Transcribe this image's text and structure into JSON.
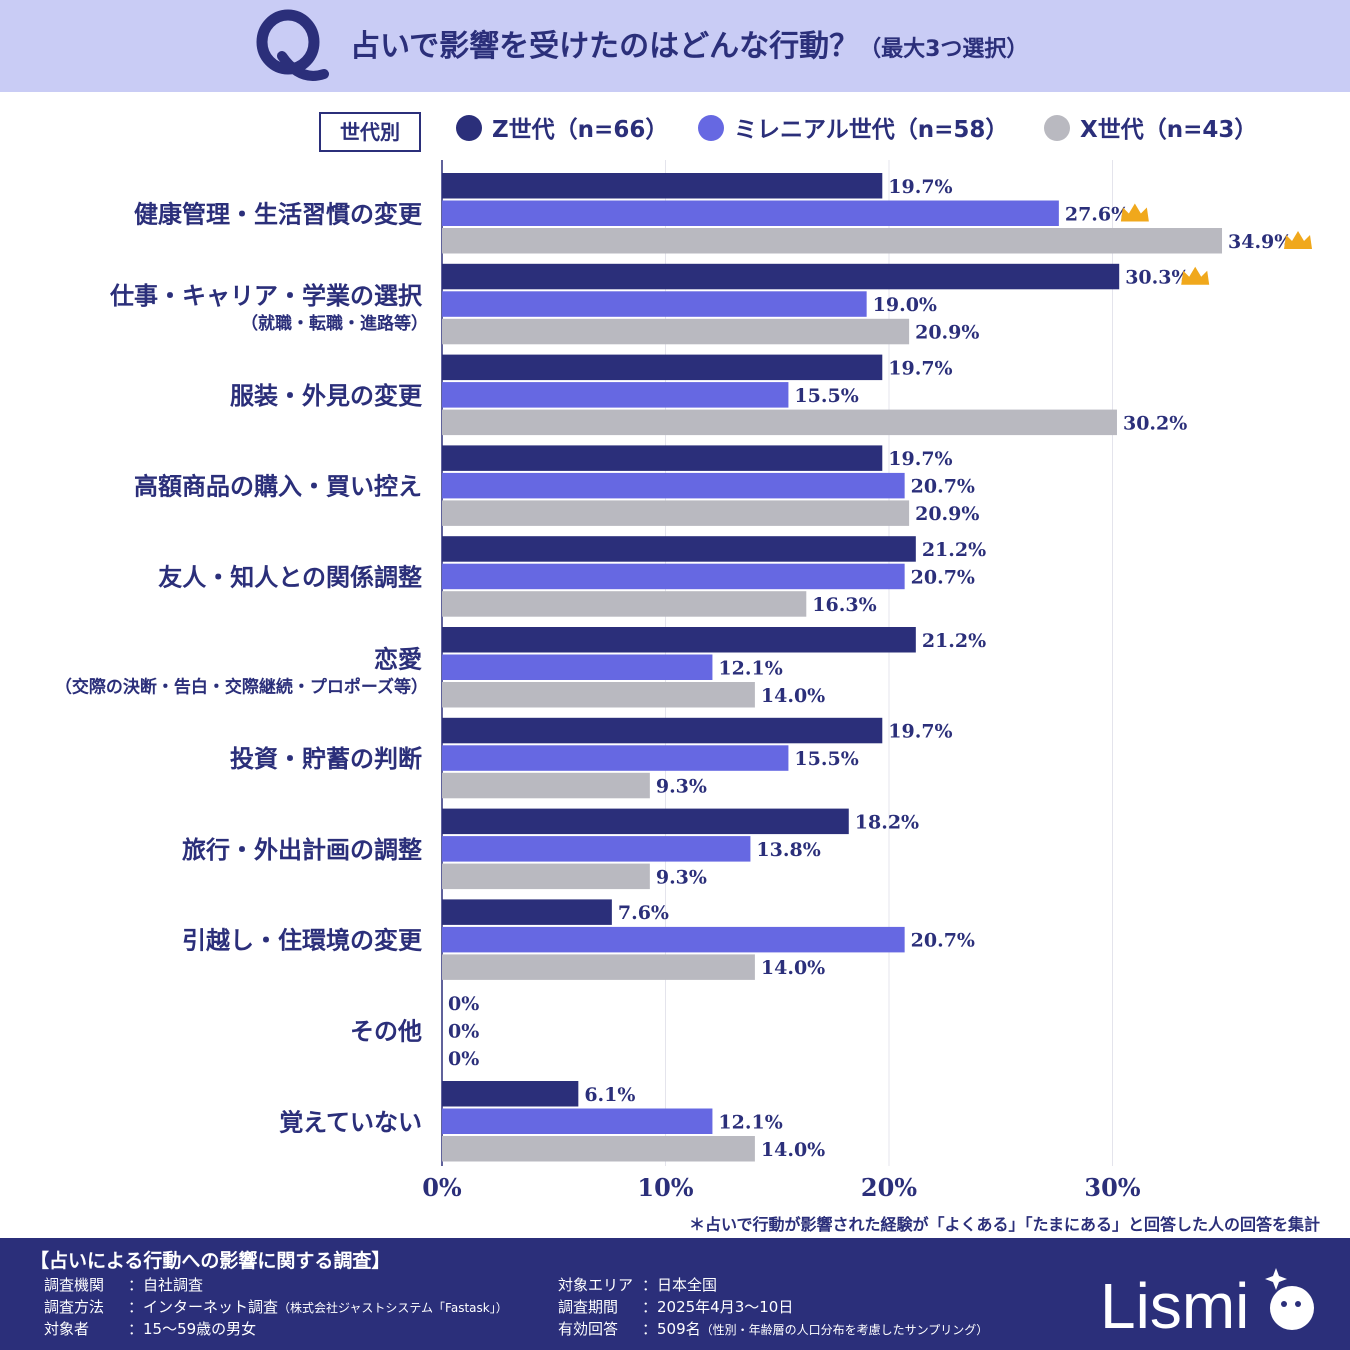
{
  "header": {
    "title": "占いで影響を受けたのはどんな行動？",
    "subtitle": "（最大3つ選択）"
  },
  "legend": {
    "box_label": "世代別",
    "items": [
      {
        "label": "Z世代（n=66）",
        "color": "#2b2f7a"
      },
      {
        "label": "ミレニアル世代（n=58）",
        "color": "#6668e2"
      },
      {
        "label": "X世代（n=43）",
        "color": "#b9b9c0"
      }
    ]
  },
  "chart_data": {
    "type": "bar",
    "orientation": "horizontal",
    "title": "占いで影響を受けたのはどんな行動？（最大3つ選択）",
    "categories": [
      [
        "健康管理・生活習慣の変更"
      ],
      [
        "仕事・キャリア・学業の選択",
        "（就職・転職・進路等）"
      ],
      [
        "服装・外見の変更"
      ],
      [
        "高額商品の購入・買い控え"
      ],
      [
        "友人・知人との関係調整"
      ],
      [
        "恋愛",
        "（交際の決断・告白・交際継続・プロポーズ等）"
      ],
      [
        "投資・貯蓄の判断"
      ],
      [
        "旅行・外出計画の調整"
      ],
      [
        "引越し・住環境の変更"
      ],
      [
        "その他"
      ],
      [
        "覚えていない"
      ]
    ],
    "series": [
      {
        "name": "Z世代（n=66）",
        "color": "#2b2f7a",
        "values": [
          19.7,
          30.3,
          19.7,
          19.7,
          21.2,
          21.2,
          19.7,
          18.2,
          7.6,
          0,
          6.1
        ],
        "labels": [
          "19.7%",
          "30.3%",
          "19.7%",
          "19.7%",
          "21.2%",
          "21.2%",
          "19.7%",
          "18.2%",
          "7.6%",
          "0%",
          "6.1%"
        ]
      },
      {
        "name": "ミレニアル世代（n=58）",
        "color": "#6668e2",
        "values": [
          27.6,
          19.0,
          15.5,
          20.7,
          20.7,
          12.1,
          15.5,
          13.8,
          20.7,
          0,
          12.1
        ],
        "labels": [
          "27.6%",
          "19.0%",
          "15.5%",
          "20.7%",
          "20.7%",
          "12.1%",
          "15.5%",
          "13.8%",
          "20.7%",
          "0%",
          "12.1%"
        ]
      },
      {
        "name": "X世代（n=43）",
        "color": "#b9b9c0",
        "values": [
          34.9,
          20.9,
          30.2,
          20.9,
          16.3,
          14.0,
          9.3,
          9.3,
          14.0,
          0,
          14.0
        ],
        "labels": [
          "34.9%",
          "20.9%",
          "30.2%",
          "20.9%",
          "16.3%",
          "14.0%",
          "9.3%",
          "9.3%",
          "14.0%",
          "0%",
          "14.0%"
        ]
      }
    ],
    "top_markers": [
      {
        "series": 1,
        "category": 0
      },
      {
        "series": 2,
        "category": 0
      },
      {
        "series": 0,
        "category": 1
      }
    ],
    "xlim": [
      0,
      35
    ],
    "xticks": [
      0,
      10,
      20,
      30
    ],
    "xtick_labels": [
      "0%",
      "10%",
      "20%",
      "30%"
    ],
    "grid": true,
    "legend_position": "top"
  },
  "footnote": "＊占いで行動が影響された経験が「よくある」「たまにある」と回答した人の回答を集計",
  "footer": {
    "survey_title": "【占いによる行動への影響に関する調査】",
    "left": [
      {
        "key": "調査機関",
        "value": "：自社調査",
        "note": ""
      },
      {
        "key": "調査方法",
        "value": "：インターネット調査",
        "note": "（株式会社ジャストシステム「Fastask」）"
      },
      {
        "key": "対象者",
        "value": "：15～59歳の男女",
        "note": ""
      }
    ],
    "right": [
      {
        "key": "対象エリア",
        "value": "：日本全国",
        "note": ""
      },
      {
        "key": "調査期間",
        "value": "：2025年4月3～10日",
        "note": ""
      },
      {
        "key": "有効回答",
        "value": "：509名",
        "note": "（性別・年齢層の人口分布を考慮したサンプリング）"
      }
    ],
    "logo_text": "Lismi"
  },
  "colors": {
    "header_bg": "#c9ccf5",
    "footer_bg": "#2b2f7a",
    "crown": "#f0a81c",
    "grid": "#e4e4ec"
  }
}
